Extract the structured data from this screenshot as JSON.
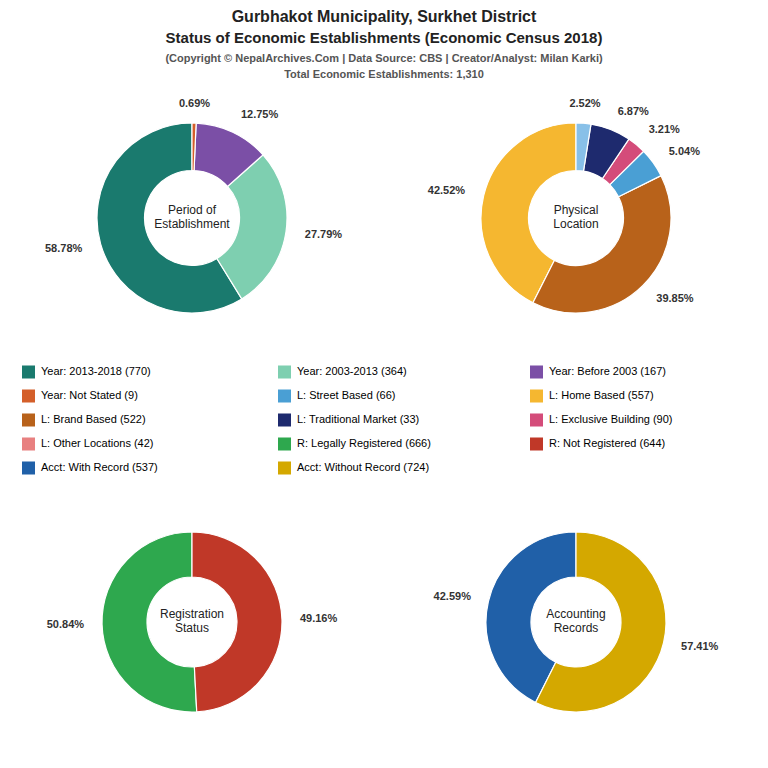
{
  "title": [
    "Gurbhakot Municipality, Surkhet District",
    "Status of Economic Establishments (Economic Census 2018)"
  ],
  "subtitle": [
    "(Copyright © NepalArchives.Com | Data Source: CBS | Creator/Analyst: Milan Karki)",
    "Total Economic Establishments: 1,310"
  ],
  "chart_data": [
    {
      "type": "pie",
      "title": [
        "Period of",
        "Establishment"
      ],
      "values": [
        58.78,
        27.79,
        12.75,
        0.69
      ],
      "value_labels": [
        "58.78%",
        "27.79%",
        "12.75%",
        "0.69%"
      ],
      "colors": [
        "#1a7a6e",
        "#7ecfb0",
        "#7b4fa6",
        "#d45f2a"
      ]
    },
    {
      "type": "pie",
      "title": [
        "Physical",
        "Location"
      ],
      "values": [
        42.52,
        39.85,
        5.04,
        3.21,
        6.87,
        2.52
      ],
      "value_labels": [
        "42.52%",
        "39.85%",
        "5.04%",
        "3.21%",
        "6.87%",
        "2.52%"
      ],
      "colors": [
        "#f5b730",
        "#b8621a",
        "#4a9fd4",
        "#d44c7a",
        "#1e2a6e",
        "#88c0e8"
      ]
    },
    {
      "type": "pie",
      "title": [
        "Registration",
        "Status"
      ],
      "values": [
        50.84,
        49.16
      ],
      "value_labels": [
        "50.84%",
        "49.16%"
      ],
      "colors": [
        "#2ea84e",
        "#c03828"
      ]
    },
    {
      "type": "pie",
      "title": [
        "Accounting",
        "Records"
      ],
      "values": [
        42.59,
        57.41
      ],
      "value_labels": [
        "42.59%",
        "57.41%"
      ],
      "colors": [
        "#2060a8",
        "#d4a800"
      ]
    }
  ],
  "legend_entries": [
    {
      "name": "Year: 2013-2018 (770)",
      "color": "#1a7a6e"
    },
    {
      "name": "Year: 2003-2013 (364)",
      "color": "#7ecfb0"
    },
    {
      "name": "Year: Before 2003 (167)",
      "color": "#7b4fa6"
    },
    {
      "name": "Year: Not Stated (9)",
      "color": "#d45f2a"
    },
    {
      "name": "L: Street Based (66)",
      "color": "#4a9fd4"
    },
    {
      "name": "L: Home Based (557)",
      "color": "#f5b730"
    },
    {
      "name": "L: Brand Based (522)",
      "color": "#b8621a"
    },
    {
      "name": "L: Traditional Market (33)",
      "color": "#1e2a6e"
    },
    {
      "name": "L: Exclusive Building (90)",
      "color": "#d44c7a"
    },
    {
      "name": "L: Other Locations (42)",
      "color": "#e88080"
    },
    {
      "name": "R: Legally Registered (666)",
      "color": "#2ea84e"
    },
    {
      "name": "R: Not Registered (644)",
      "color": "#c03828"
    },
    {
      "name": "Acct: With Record (537)",
      "color": "#2060a8"
    },
    {
      "name": "Acct: Without Record (724)",
      "color": "#d4a800"
    }
  ]
}
